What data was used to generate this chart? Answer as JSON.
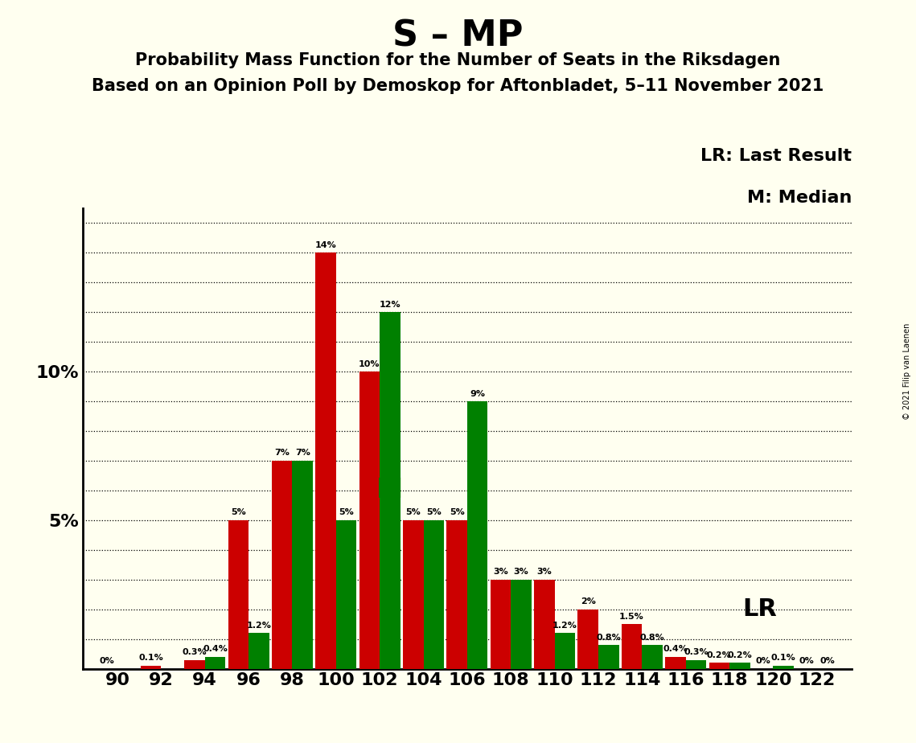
{
  "title": "S – MP",
  "subtitle1": "Probability Mass Function for the Number of Seats in the Riksdagen",
  "subtitle2": "Based on an Opinion Poll by Demoskop for Aftonbladet, 5–11 November 2021",
  "copyright": "© 2021 Filip van Laenen",
  "seats": [
    90,
    92,
    94,
    96,
    98,
    100,
    102,
    104,
    106,
    108,
    110,
    112,
    114,
    116,
    118,
    120,
    122
  ],
  "red_values": [
    0.0,
    0.1,
    0.3,
    5.0,
    7.0,
    14.0,
    10.0,
    5.0,
    5.0,
    3.0,
    3.0,
    2.0,
    1.5,
    0.4,
    0.2,
    0.0,
    0.0
  ],
  "green_values": [
    0.0,
    0.0,
    0.4,
    1.2,
    7.0,
    5.0,
    12.0,
    5.0,
    9.0,
    3.0,
    1.2,
    0.8,
    0.8,
    0.3,
    0.2,
    0.1,
    0.0
  ],
  "red_labels": [
    "0%",
    "0.1%",
    "0.3%",
    "5%",
    "7%",
    "14%",
    "10%",
    "5%",
    "5%",
    "3%",
    "3%",
    "2%",
    "1.5%",
    "0.4%",
    "0.2%",
    "0%",
    "0%"
  ],
  "green_labels": [
    null,
    null,
    "0.4%",
    "1.2%",
    "7%",
    "5%",
    "12%",
    "5%",
    "9%",
    "3%",
    "1.2%",
    "0.8%",
    "0.8%",
    "0.3%",
    "0.2%",
    "0.1%",
    "0%"
  ],
  "red_color": "#CC0000",
  "green_color": "#008000",
  "bg_color": "#FFFFF0",
  "median_seat_idx": 6,
  "lr_seat_idx": 12,
  "ylim": [
    0,
    15.5
  ],
  "bar_width": 0.47,
  "figsize": [
    11.39,
    9.24
  ],
  "dpi": 100,
  "label_fontsize": 8.0,
  "tick_fontsize": 16,
  "title_fontsize": 32,
  "subtitle1_fontsize": 15,
  "subtitle2_fontsize": 15
}
